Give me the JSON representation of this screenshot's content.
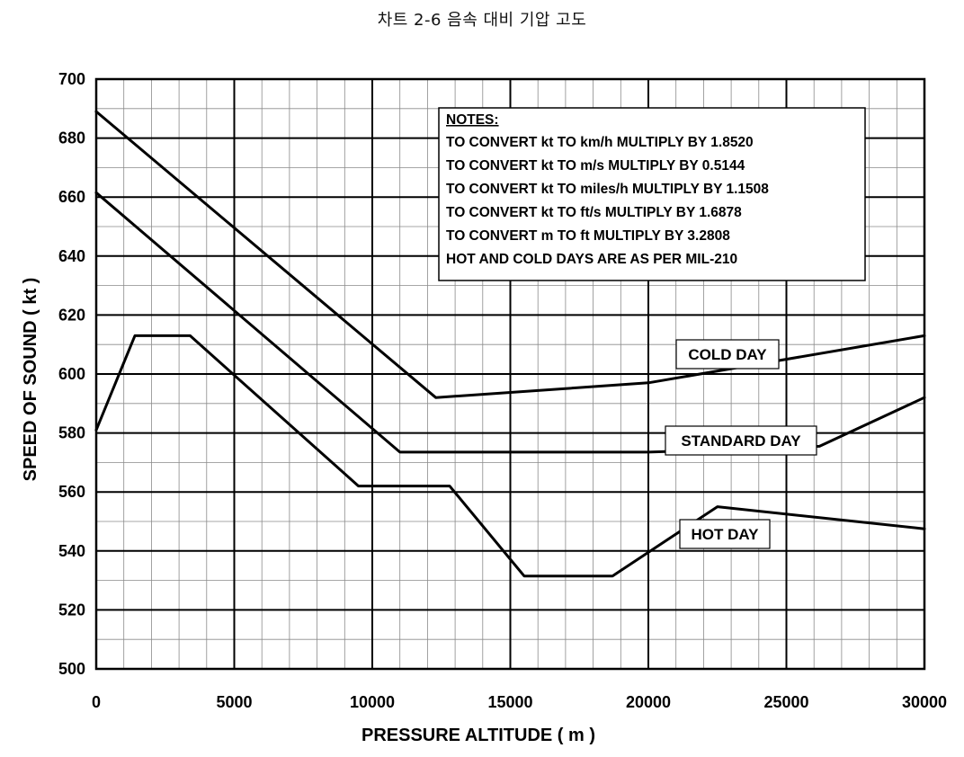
{
  "chart_data": {
    "type": "line",
    "title": "차트 2-6 음속 대비 기압 고도",
    "xlabel": "PRESSURE ALTITUDE ( m )",
    "ylabel": "SPEED OF SOUND ( kt )",
    "xlim": [
      0,
      30000
    ],
    "ylim": [
      500,
      700
    ],
    "x_ticks": [
      "0",
      "5000",
      "10000",
      "15000",
      "20000",
      "25000",
      "30000"
    ],
    "y_ticks": [
      "500",
      "520",
      "540",
      "560",
      "580",
      "600",
      "620",
      "640",
      "660",
      "680",
      "700"
    ],
    "grid": true,
    "series": [
      {
        "name": "COLD DAY",
        "x": [
          0,
          12300,
          20000,
          30000
        ],
        "y": [
          689,
          592,
          597,
          613
        ]
      },
      {
        "name": "STANDARD DAY",
        "x": [
          0,
          11000,
          20000,
          26200,
          30000
        ],
        "y": [
          661.5,
          573.5,
          573.5,
          575.5,
          592
        ]
      },
      {
        "name": "HOT DAY",
        "x": [
          0,
          1400,
          3400,
          9500,
          12800,
          15500,
          18700,
          22500,
          30000
        ],
        "y": [
          581,
          613,
          613,
          562,
          562,
          531.5,
          531.5,
          555,
          547.5
        ]
      }
    ],
    "notes": {
      "heading": "NOTES:",
      "lines": [
        "TO CONVERT kt TO km/h MULTIPLY BY 1.8520",
        "TO CONVERT kt TO m/s MULTIPLY BY 0.5144",
        "TO CONVERT kt TO miles/h MULTIPLY BY 1.1508",
        "TO CONVERT kt TO ft/s MULTIPLY BY 1.6878",
        "TO CONVERT m TO ft MULTIPLY BY 3.2808",
        "HOT AND COLD DAYS ARE AS PER MIL-210"
      ]
    },
    "series_labels": [
      "COLD DAY",
      "STANDARD DAY",
      "HOT DAY"
    ]
  }
}
